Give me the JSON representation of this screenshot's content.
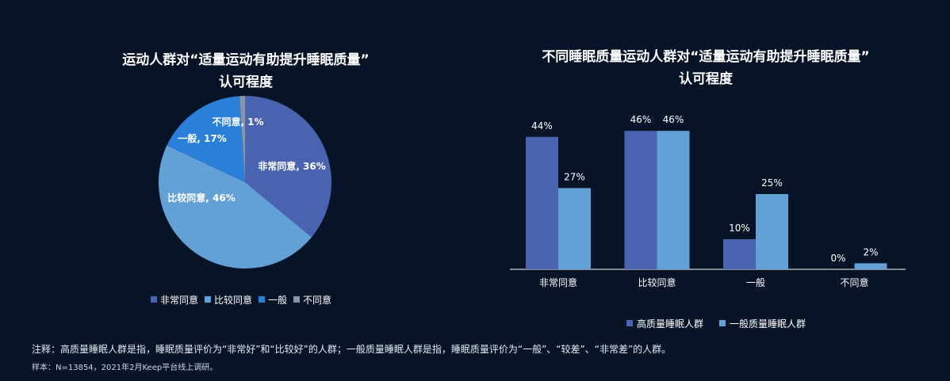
{
  "colors": {
    "background": "#071428",
    "very_agree": "#4a63b0",
    "agree": "#62a0d6",
    "neutral": "#2a7fd9",
    "disagree": "#8c93a3",
    "high_quality": "#4a63b0",
    "normal_quality": "#62a0d6"
  },
  "pie": {
    "title_line1": "运动人群对“适量运动有助提升睡眠质量”",
    "title_line2": "认可程度"
  },
  "bar": {
    "title_line1": "不同睡眠质量运动人群对“适量运动有助提升睡眠质量”",
    "title_line2": "认可程度"
  },
  "footnote": {
    "note": "注释：高质量睡眠人群是指，睡眠质量评价为“非常好”和“比较好”的人群；一般质量睡眠人群是指，睡眠质量评价为“一般”、“较差”、“非常差”的人群。",
    "sample": "样本：N=13854，2021年2月Keep平台线上调研。"
  },
  "chart_data": [
    {
      "type": "pie",
      "title": "运动人群对“适量运动有助提升睡眠质量”认可程度",
      "slices": [
        {
          "label": "非常同意",
          "value": 36,
          "data_label": "非常同意, 36%",
          "color": "#4a63b0"
        },
        {
          "label": "比较同意",
          "value": 46,
          "data_label": "比较同意, 46%",
          "color": "#62a0d6"
        },
        {
          "label": "一般",
          "value": 17,
          "data_label": "一般, 17%",
          "color": "#2a7fd9"
        },
        {
          "label": "不同意",
          "value": 1,
          "data_label": "不同意, 1%",
          "color": "#8c93a3"
        }
      ],
      "legend": [
        "非常同意",
        "比较同意",
        "一般",
        "不同意"
      ],
      "legend_position": "bottom"
    },
    {
      "type": "bar",
      "title": "不同睡眠质量运动人群对“适量运动有助提升睡眠质量”认可程度",
      "categories": [
        "非常同意",
        "比较同意",
        "一般",
        "不同意"
      ],
      "series": [
        {
          "name": "高质量睡眠人群",
          "values": [
            44,
            46,
            10,
            0
          ],
          "labels": [
            "44%",
            "46%",
            "10%",
            "0%"
          ],
          "color": "#4a63b0"
        },
        {
          "name": "一般质量睡眠人群",
          "values": [
            27,
            46,
            25,
            2
          ],
          "labels": [
            "27%",
            "46%",
            "25%",
            "2%"
          ],
          "color": "#62a0d6"
        }
      ],
      "ylim": [
        0,
        50
      ],
      "grid": false,
      "legend_position": "bottom"
    }
  ]
}
